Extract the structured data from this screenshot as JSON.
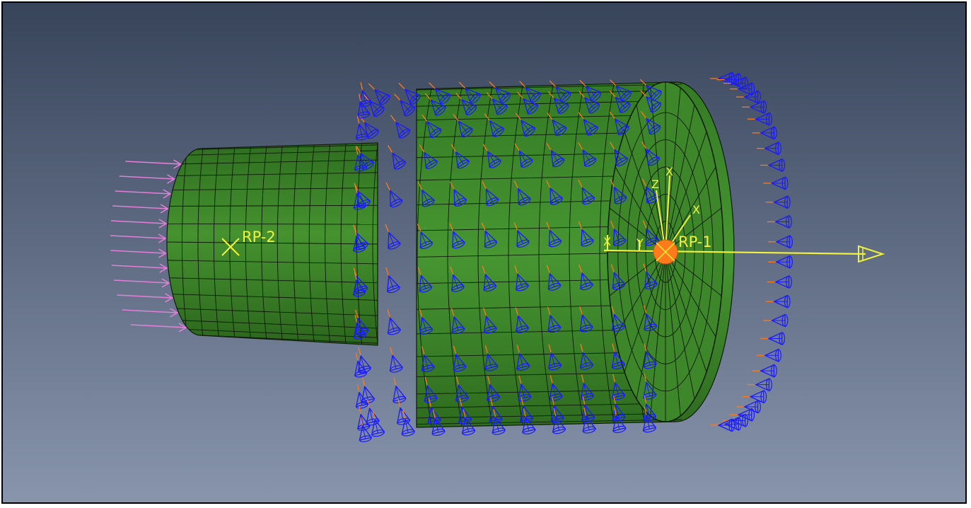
{
  "viewport": {
    "background_top": "#37445a",
    "background_bottom": "#8895ad",
    "mesh_color": "#3f8a2a",
    "mesh_line": "#0e1a08",
    "pressure_arrow_color": "#1a1aff",
    "pressure_tail_color": "#ff7a1a",
    "load_arrow_color": "#e37fd8",
    "label_color": "#f2f23a",
    "rp_marker_color": "#ff7a1a"
  },
  "reference_points": {
    "rp1_label": "RP-1",
    "rp2_label": "RP-2"
  },
  "triad_labels": {
    "z": "Z",
    "x_top": "X",
    "x_diag": "X",
    "x_left": "X",
    "y": "Y"
  }
}
